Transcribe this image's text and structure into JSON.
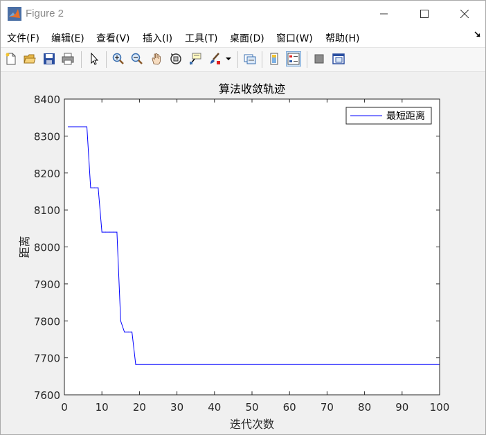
{
  "window": {
    "title": "Figure 2"
  },
  "menu": [
    "文件(F)",
    "编辑(E)",
    "查看(V)",
    "插入(I)",
    "工具(T)",
    "桌面(D)",
    "窗口(W)",
    "帮助(H)"
  ],
  "toolbar_icons": [
    "new-figure-icon",
    "open-folder-icon",
    "save-icon",
    "print-icon",
    "pointer-icon",
    "zoom-in-icon",
    "zoom-out-icon",
    "pan-hand-icon",
    "rotate-3d-icon",
    "data-cursor-icon",
    "brush-icon",
    "link-plot-icon",
    "colorbar-icon",
    "legend-icon",
    "hide-plot-tools-icon",
    "show-plot-tools-icon"
  ],
  "chart_data": {
    "type": "line",
    "title": "算法收敛轨迹",
    "xlabel": "迭代次数",
    "ylabel": "距离",
    "xlim": [
      0,
      100
    ],
    "ylim": [
      7600,
      8400
    ],
    "xticks": [
      0,
      10,
      20,
      30,
      40,
      50,
      60,
      70,
      80,
      90,
      100
    ],
    "yticks": [
      7600,
      7700,
      7800,
      7900,
      8000,
      8100,
      8200,
      8300,
      8400
    ],
    "legend_position": "top-right",
    "grid": false,
    "series": [
      {
        "name": "最短距离",
        "color": "#0000ff",
        "x": [
          1,
          6,
          7,
          8,
          9,
          10,
          11,
          12,
          13,
          14,
          15,
          16,
          17,
          18,
          19,
          100
        ],
        "y": [
          8325,
          8325,
          8160,
          8160,
          8160,
          8040,
          8040,
          8040,
          8040,
          8040,
          7800,
          7770,
          7770,
          7770,
          7682,
          7682
        ]
      }
    ]
  }
}
